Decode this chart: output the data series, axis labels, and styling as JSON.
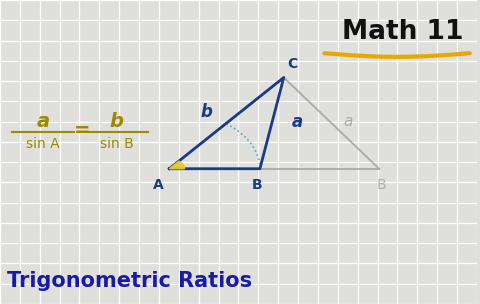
{
  "bg_color": "#dfe0dc",
  "grid_color": "#ffffff",
  "title_color": "#111111",
  "underline_color": "#e8a800",
  "bottom_title": "Trigonometric Ratios",
  "bottom_title_color": "#1a1aaa",
  "formula_color": "#a08800",
  "triangle_color": "#1a3a8a",
  "ghost_color": "#a0a0a0",
  "ghost_dashed_color": "#5599cc",
  "label_color": "#1a3a8a",
  "angle_color": "#e8c830",
  "A": [
    0.355,
    0.445
  ],
  "B": [
    0.545,
    0.445
  ],
  "C": [
    0.595,
    0.745
  ],
  "B2": [
    0.795,
    0.445
  ]
}
